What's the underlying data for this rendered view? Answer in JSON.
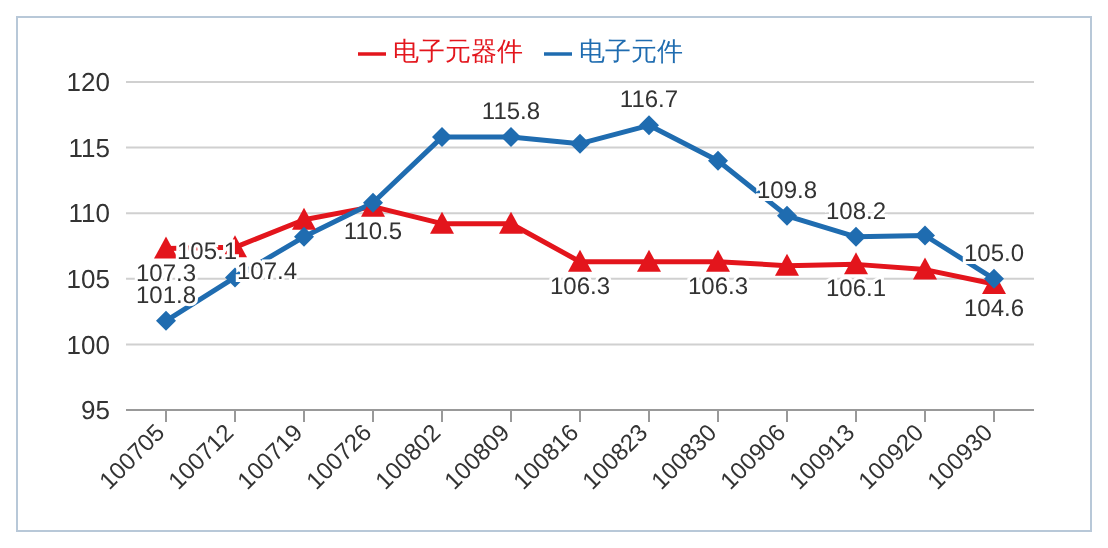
{
  "chart_data": {
    "type": "line",
    "categories": [
      "100705",
      "100712",
      "100719",
      "100726",
      "100802",
      "100809",
      "100816",
      "100823",
      "100830",
      "100906",
      "100913",
      "100920",
      "100930"
    ],
    "series": [
      {
        "name": "电子元器件",
        "color": "#e3151c",
        "marker": "triangle",
        "values": [
          107.3,
          107.4,
          109.5,
          110.5,
          109.2,
          109.2,
          106.3,
          106.3,
          106.3,
          106.0,
          106.1,
          105.7,
          104.6
        ],
        "value_labels": [
          "107.3",
          "107.4",
          null,
          "110.5",
          null,
          null,
          "106.3",
          null,
          "106.3",
          null,
          "106.1",
          null,
          "104.6"
        ]
      },
      {
        "name": "电子元件",
        "color": "#1f6cb0",
        "marker": "diamond",
        "values": [
          101.8,
          105.1,
          108.2,
          110.8,
          115.8,
          115.8,
          115.3,
          116.7,
          114.0,
          109.8,
          108.2,
          108.3,
          105.0
        ],
        "value_labels": [
          "101.8",
          "105.1",
          null,
          null,
          null,
          "115.8",
          null,
          "116.7",
          null,
          "109.8",
          "108.2",
          null,
          "105.0"
        ]
      }
    ],
    "ylim": [
      95,
      120
    ],
    "yticks": [
      95,
      100,
      105,
      110,
      115,
      120
    ],
    "grid": "y",
    "legend": "top",
    "line_style": "solid"
  }
}
